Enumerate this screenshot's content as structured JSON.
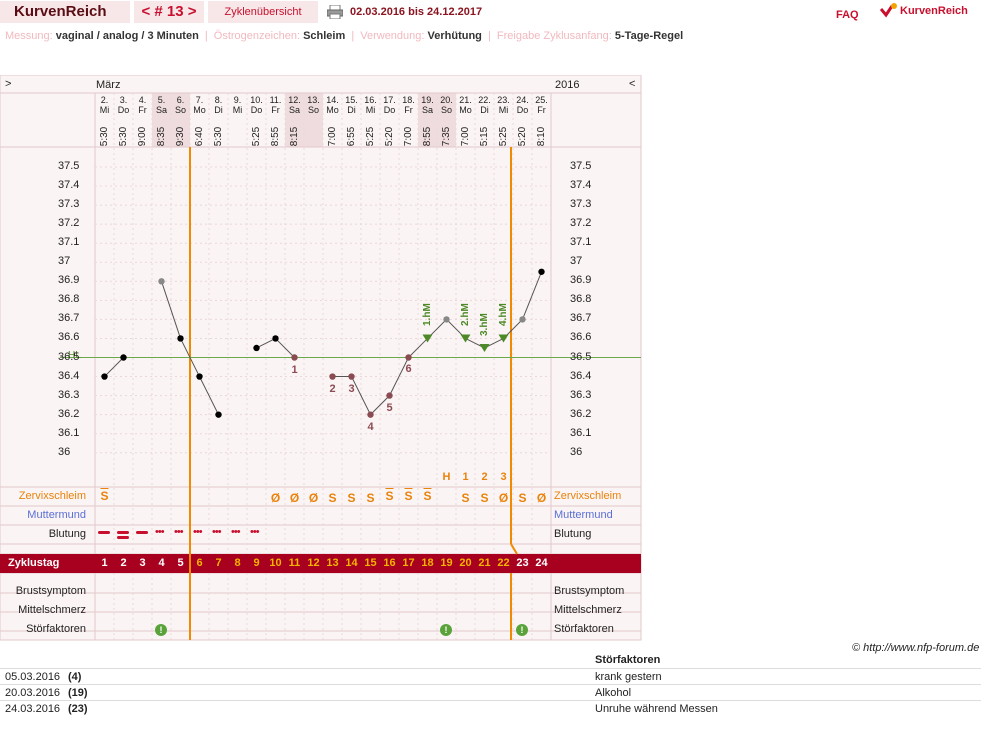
{
  "header": {
    "app_title": "KurvenReich",
    "cycle_nav": "< # 13 >",
    "overview_label": "Zyklenübersicht",
    "date_range": "02.03.2016 bis 24.12.2017",
    "faq": "FAQ",
    "brand": "KurvenReich"
  },
  "info": {
    "messung_label": "Messung:",
    "messung_value": "vaginal / analog / 3 Minuten",
    "oestrogen_label": "Östrogenzeichen:",
    "oestrogen_value": "Schleim",
    "verwendung_label": "Verwendung:",
    "verwendung_value": "Verhütung",
    "freigabe_label": "Freigabe Zyklusanfang:",
    "freigabe_value": "5-Tage-Regel"
  },
  "chart": {
    "prev_arrow": ">",
    "next_arrow": "<",
    "month": "März",
    "year": "2016",
    "hl_label": "HL",
    "days": [
      {
        "d": "2.",
        "w": "Mi",
        "t": "5:30",
        "we": false
      },
      {
        "d": "3.",
        "w": "Do",
        "t": "5:30",
        "we": false
      },
      {
        "d": "4.",
        "w": "Fr",
        "t": "9:00",
        "we": false
      },
      {
        "d": "5.",
        "w": "Sa",
        "t": "8:35",
        "we": true
      },
      {
        "d": "6.",
        "w": "So",
        "t": "9:30",
        "we": true
      },
      {
        "d": "7.",
        "w": "Mo",
        "t": "6:40",
        "we": false
      },
      {
        "d": "8.",
        "w": "Di",
        "t": "5:30",
        "we": false
      },
      {
        "d": "9.",
        "w": "Mi",
        "t": "",
        "we": false
      },
      {
        "d": "10.",
        "w": "Do",
        "t": "5:25",
        "we": false
      },
      {
        "d": "11.",
        "w": "Fr",
        "t": "8:55",
        "we": false
      },
      {
        "d": "12.",
        "w": "Sa",
        "t": "8:15",
        "we": true
      },
      {
        "d": "13.",
        "w": "So",
        "t": "",
        "we": true
      },
      {
        "d": "14.",
        "w": "Mo",
        "t": "7:00",
        "we": false
      },
      {
        "d": "15.",
        "w": "Di",
        "t": "6:55",
        "we": false
      },
      {
        "d": "16.",
        "w": "Mi",
        "t": "5:25",
        "we": false
      },
      {
        "d": "17.",
        "w": "Do",
        "t": "5:20",
        "we": false
      },
      {
        "d": "18.",
        "w": "Fr",
        "t": "7:00",
        "we": false
      },
      {
        "d": "19.",
        "w": "Sa",
        "t": "8:55",
        "we": true
      },
      {
        "d": "20.",
        "w": "So",
        "t": "7:35",
        "we": true
      },
      {
        "d": "21.",
        "w": "Mo",
        "t": "7:00",
        "we": false
      },
      {
        "d": "22.",
        "w": "Di",
        "t": "5:15",
        "we": false
      },
      {
        "d": "23.",
        "w": "Mi",
        "t": "5:25",
        "we": false
      },
      {
        "d": "24.",
        "w": "Do",
        "t": "5:20",
        "we": false
      },
      {
        "d": "25.",
        "w": "Fr",
        "t": "8:10",
        "we": false
      }
    ],
    "y_ticks": [
      "37.5",
      "37.4",
      "37.3",
      "37.2",
      "37.1",
      "37",
      "36.9",
      "36.8",
      "36.7",
      "36.6",
      "36.5",
      "36.4",
      "36.3",
      "36.2",
      "36.1",
      "36"
    ],
    "temps": [
      36.4,
      36.5,
      null,
      36.9,
      36.6,
      36.4,
      36.2,
      null,
      36.55,
      36.6,
      36.5,
      null,
      36.4,
      36.4,
      36.2,
      36.3,
      36.5,
      36.6,
      36.7,
      36.6,
      36.55,
      36.6,
      36.7,
      36.95
    ],
    "point_labels": [
      {
        "idx": 10,
        "text": "1"
      },
      {
        "idx": 12,
        "text": "2"
      },
      {
        "idx": 13,
        "text": "3"
      },
      {
        "idx": 14,
        "text": "4"
      },
      {
        "idx": 15,
        "text": "5"
      },
      {
        "idx": 16,
        "text": "6"
      }
    ],
    "hm_labels": [
      {
        "idx": 17,
        "text": "1.hM"
      },
      {
        "idx": 19,
        "text": "2.hM"
      },
      {
        "idx": 20,
        "text": "3.hM"
      },
      {
        "idx": 21,
        "text": "4.hM"
      }
    ],
    "zm_labels": [
      {
        "idx": 18,
        "text": "H"
      },
      {
        "idx": 19,
        "text": "1"
      },
      {
        "idx": 20,
        "text": "2"
      },
      {
        "idx": 21,
        "text": "3"
      }
    ],
    "cervix": [
      "S+",
      "",
      "",
      "",
      "",
      "",
      "",
      "",
      "",
      "Ø",
      "Ø",
      "Ø",
      "S",
      "S",
      "S",
      "S+",
      "S+",
      "S+",
      "",
      "S",
      "S",
      "Ø",
      "S",
      "Ø"
    ],
    "bleeding": [
      "heavy",
      "heavy",
      "medium",
      "light",
      "light",
      "light",
      "light",
      "light",
      "light",
      "",
      "",
      "",
      "",
      "",
      "",
      "",
      "",
      "",
      "",
      "",
      "",
      "",
      "",
      ""
    ],
    "cycle_days": [
      "1",
      "2",
      "3",
      "4",
      "5",
      "6",
      "7",
      "8",
      "9",
      "10",
      "11",
      "12",
      "13",
      "14",
      "15",
      "16",
      "17",
      "18",
      "19",
      "20",
      "21",
      "22",
      "23",
      "24"
    ],
    "disruption_days": [
      3,
      18,
      22
    ],
    "rows": {
      "cervix": "Zervixschleim",
      "muttermund": "Muttermund",
      "blutung": "Blutung",
      "zyklustag": "Zyklustag",
      "brust": "Brustsymptom",
      "mittel": "Mittelschmerz",
      "stoer": "Störfaktoren"
    },
    "colors": {
      "accent": "#a8001f",
      "orange": "#f08a00",
      "green": "#4d8a27",
      "hl_line": "#6aaa4a"
    }
  },
  "copyright": "© http://www.nfp-forum.de",
  "notes": {
    "header": "Störfaktoren",
    "rows": [
      {
        "date": "05.03.2016",
        "cd": "(4)",
        "text": "krank gestern"
      },
      {
        "date": "20.03.2016",
        "cd": "(19)",
        "text": "Alkohol"
      },
      {
        "date": "24.03.2016",
        "cd": "(23)",
        "text": "Unruhe während Messen"
      }
    ]
  }
}
